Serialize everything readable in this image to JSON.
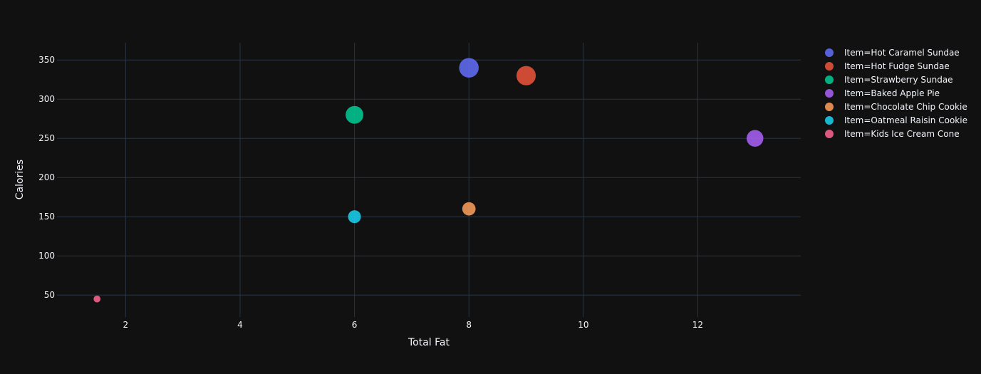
{
  "theme": {
    "background": "#111111",
    "grid_color": "#283442",
    "text_color": "#f2f5fa"
  },
  "chart_data": {
    "type": "scatter",
    "xlabel": "Total Fat",
    "ylabel": "Calories",
    "xlim": [
      0.8,
      13.8
    ],
    "ylim": [
      22,
      372
    ],
    "x_ticks": [
      2,
      4,
      6,
      8,
      10,
      12
    ],
    "y_ticks": [
      50,
      100,
      150,
      200,
      250,
      300,
      350
    ],
    "grid": true,
    "legend_position": "top-right",
    "size_note": "marker size scales with Calories",
    "series": [
      {
        "name": "Item=Hot Caramel Sundae",
        "color": "#636efa",
        "x": [
          8
        ],
        "y": [
          340
        ]
      },
      {
        "name": "Item=Hot Fudge Sundae",
        "color": "#EF553B",
        "x": [
          9
        ],
        "y": [
          330
        ]
      },
      {
        "name": "Item=Strawberry Sundae",
        "color": "#00cc96",
        "x": [
          6
        ],
        "y": [
          280
        ]
      },
      {
        "name": "Item=Baked Apple Pie",
        "color": "#ab63fa",
        "x": [
          13
        ],
        "y": [
          250
        ]
      },
      {
        "name": "Item=Chocolate Chip Cookie",
        "color": "#FFA15A",
        "x": [
          8
        ],
        "y": [
          160
        ]
      },
      {
        "name": "Item=Oatmeal Raisin Cookie",
        "color": "#19d3f3",
        "x": [
          6
        ],
        "y": [
          150
        ]
      },
      {
        "name": "Item=Kids Ice Cream Cone",
        "color": "#FF6692",
        "x": [
          1.5
        ],
        "y": [
          45
        ]
      }
    ]
  }
}
